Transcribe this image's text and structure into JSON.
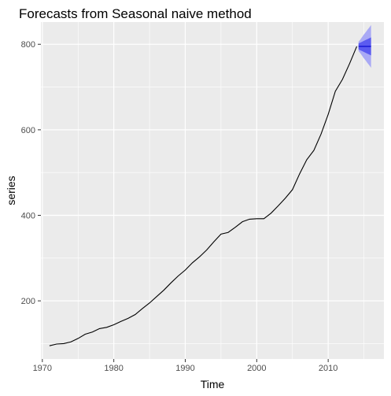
{
  "chart_data": {
    "type": "line",
    "title": "Forecasts from Seasonal naive method",
    "xlabel": "Time",
    "ylabel": "series",
    "xlim": [
      1969.8,
      2017.8
    ],
    "ylim": [
      64,
      852
    ],
    "x_ticks": [
      1970,
      1980,
      1990,
      2000,
      2010
    ],
    "y_ticks": [
      200,
      400,
      600,
      800
    ],
    "x_minor_ticks": [
      1975,
      1985,
      1995,
      2005,
      2015
    ],
    "y_minor_ticks": [
      100,
      300,
      500,
      700
    ],
    "grid": true,
    "panel_background": "#ebebeb",
    "grid_color": "#ffffff",
    "series": [
      {
        "color": "#000000",
        "x": [
          1971.0,
          1972.0,
          1973.0,
          1974.0,
          1975.0,
          1976.0,
          1977.0,
          1978.0,
          1979.0,
          1980.0,
          1981.0,
          1982.0,
          1983.0,
          1984.0,
          1985.0,
          1986.0,
          1987.0,
          1988.0,
          1989.0,
          1990.0,
          1991.0,
          1992.0,
          1993.0,
          1994.0,
          1995.0,
          1996.0,
          1997.0,
          1998.0,
          1999.0,
          2000.0,
          2001.0,
          2002.0,
          2003.0,
          2004.0,
          2005.0,
          2006.0,
          2007.0,
          2008.0,
          2009.0,
          2010.0,
          2011.0,
          2012.0,
          2013.0,
          2014.0
        ],
        "y": [
          95,
          99,
          100,
          104,
          112,
          122,
          127,
          135,
          138,
          144,
          152,
          159,
          168,
          182,
          195,
          210,
          225,
          242,
          258,
          272,
          289,
          303,
          319,
          338,
          356,
          360,
          372,
          385,
          391,
          392,
          392,
          405,
          422,
          440,
          460,
          497,
          530,
          552,
          590,
          636,
          690,
          718,
          755,
          795
        ]
      }
    ],
    "forecast": {
      "x": [
        2014.25,
        2014.5,
        2014.75,
        2015.0,
        2015.25,
        2015.5,
        2015.75,
        2016.0
      ],
      "point": [
        795,
        795,
        795,
        795,
        795,
        795,
        795,
        795
      ],
      "lo80": [
        788,
        786,
        784,
        782,
        780,
        778,
        776,
        774
      ],
      "hi80": [
        802,
        804,
        806,
        808,
        810,
        812,
        814,
        816
      ],
      "lo95": [
        784,
        779,
        773,
        767,
        762,
        756,
        751,
        745
      ],
      "hi95": [
        806,
        811,
        817,
        823,
        828,
        834,
        839,
        845
      ],
      "color_80": "#5b5bf0",
      "color_95": "#a9a9f5",
      "line_color": "#0000cc"
    }
  }
}
